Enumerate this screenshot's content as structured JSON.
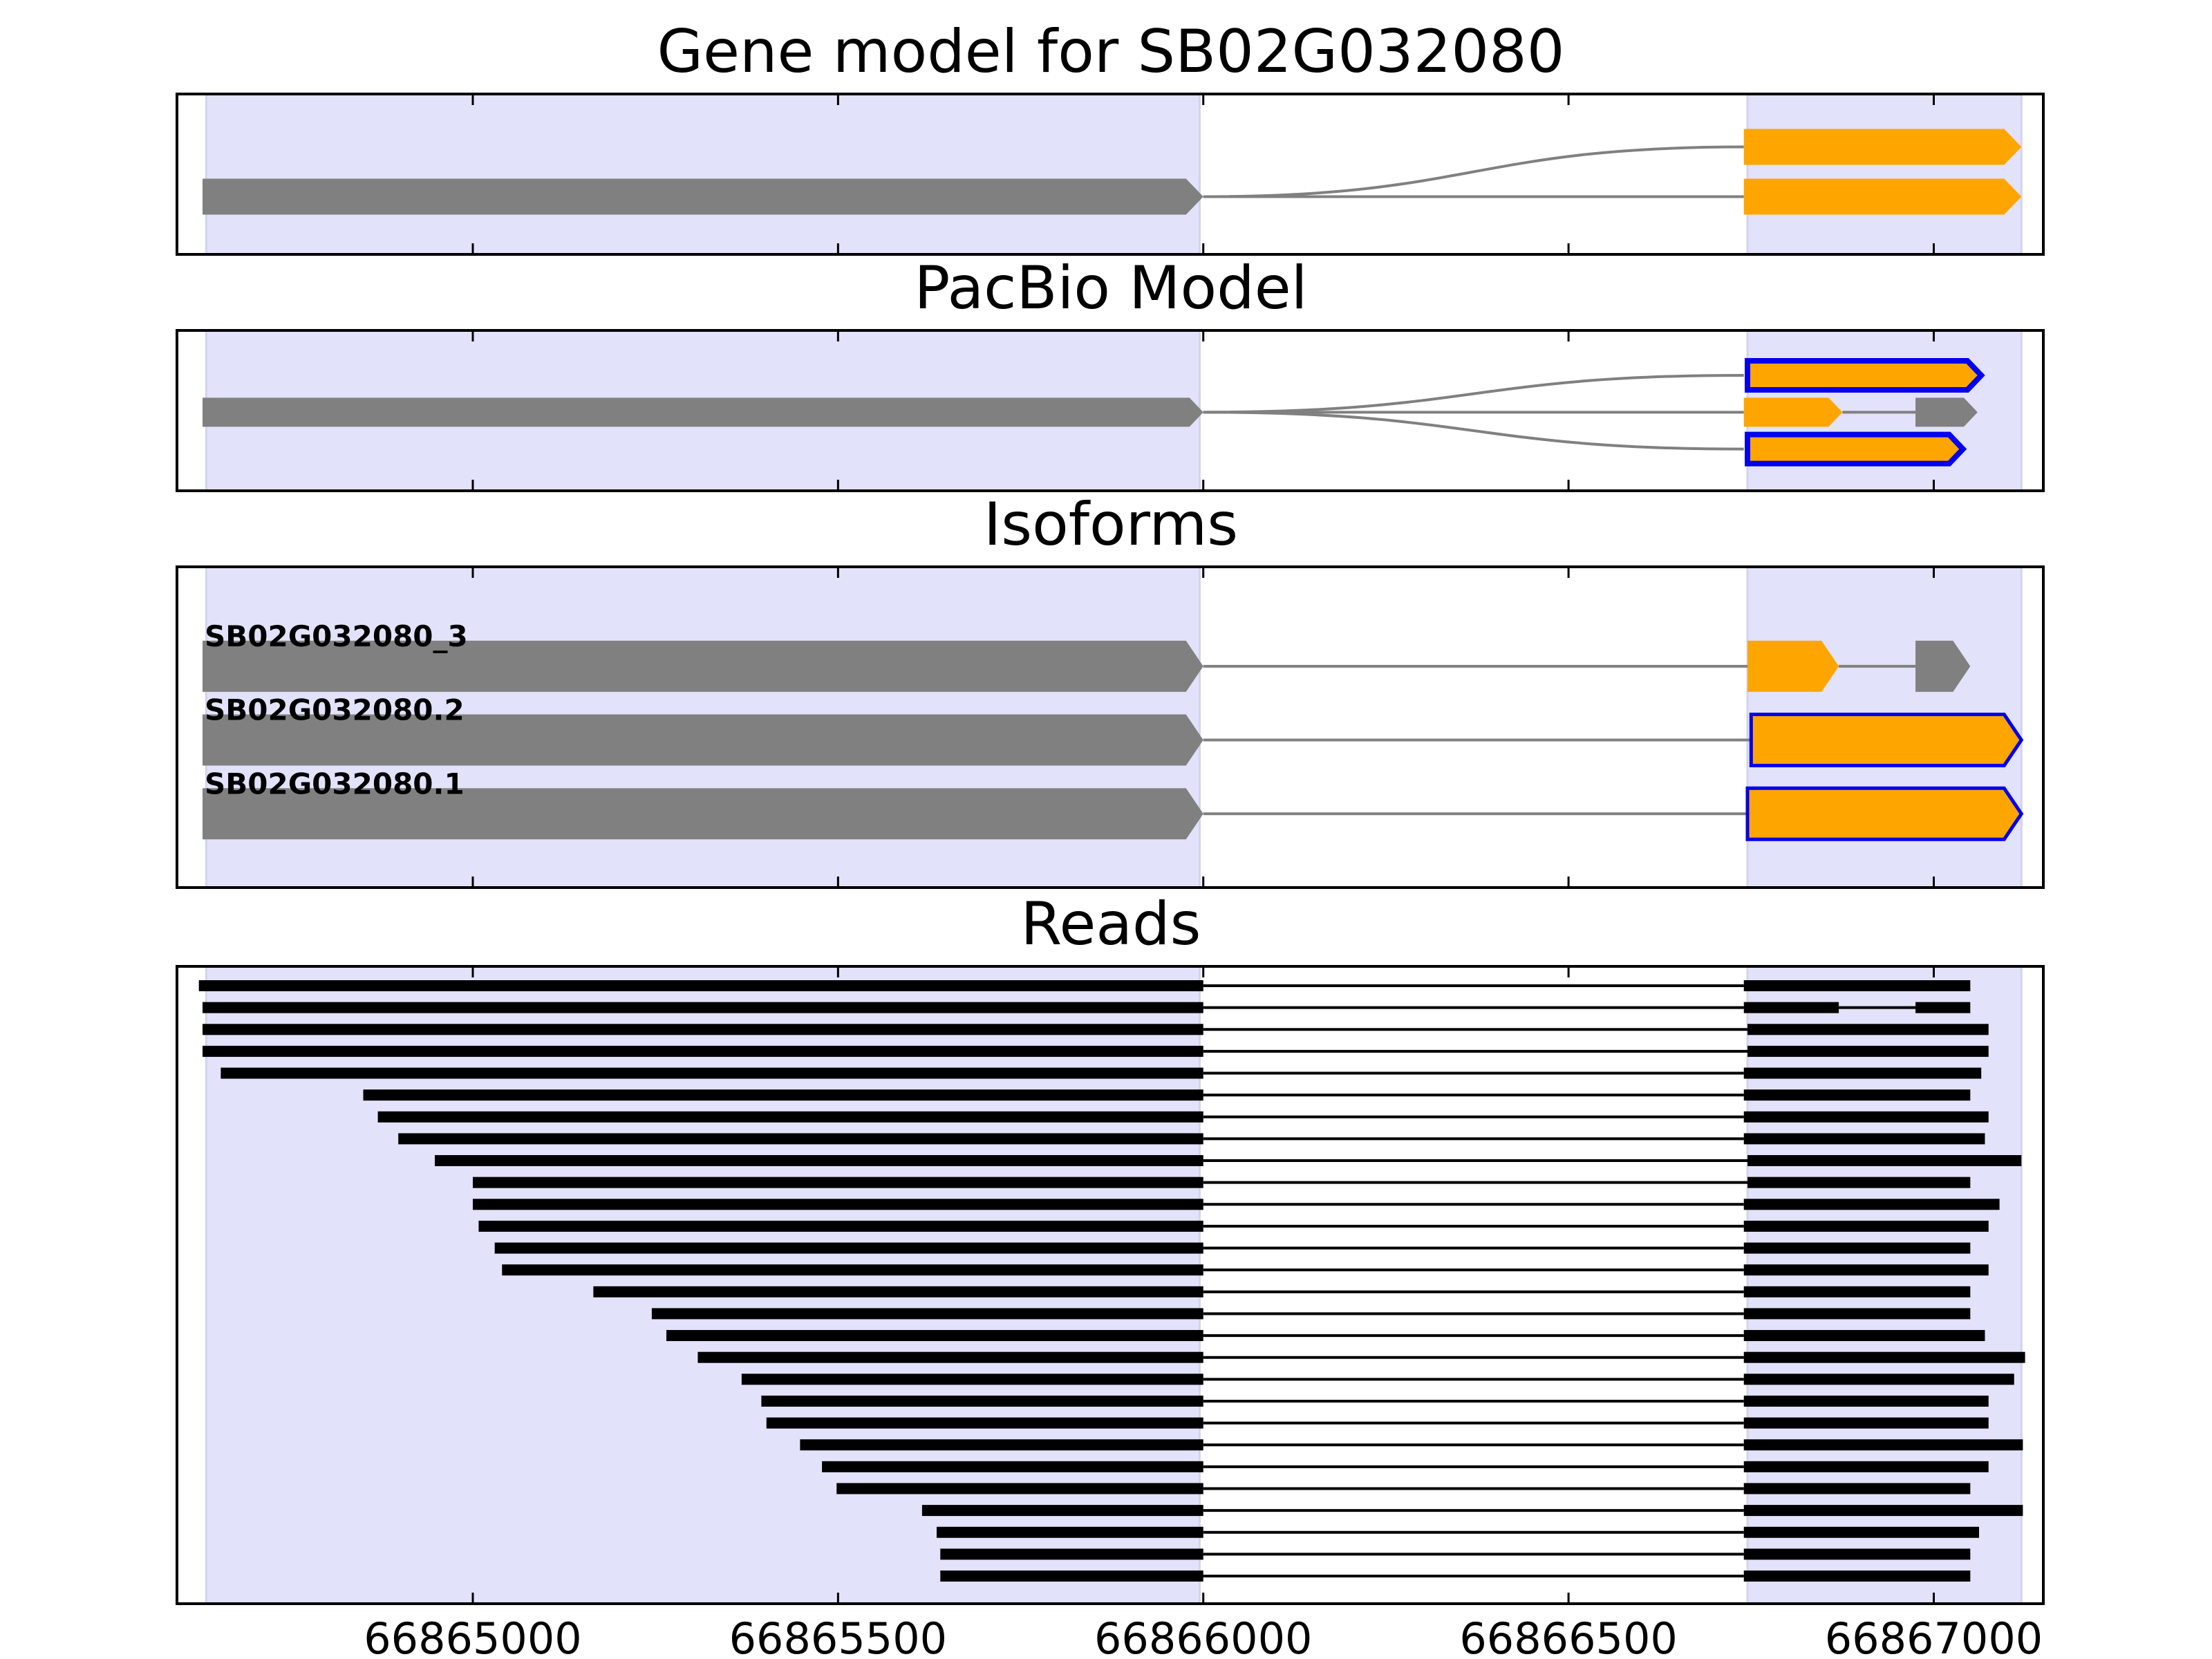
{
  "chart_data": {
    "type": "gene_model_tracks",
    "x_axis": {
      "xlim": [
        66864595,
        66867150
      ],
      "ticks": [
        66865000,
        66865500,
        66866000,
        66866500,
        66867000
      ],
      "tick_labels": [
        "66865000",
        "66865500",
        "66866000",
        "66866500",
        "66867000"
      ]
    },
    "colors": {
      "region": "#e2e2fa",
      "exon_noncoding": "#808080",
      "exon_coding": "#ffa500",
      "outline": "#0000ee",
      "intron": "#808080",
      "read": "#000000"
    },
    "highlight_regions": [
      [
        66864635,
        66865995
      ],
      [
        66866745,
        66867120
      ]
    ],
    "panels": [
      {
        "title": "Gene model for SB02G032080",
        "track_height": 1.0,
        "tracks": [
          {
            "y": 0.33,
            "arrow_w": 25,
            "exons": [
              {
                "start": 66866740,
                "end": 66867120,
                "color": "coding"
              }
            ]
          },
          {
            "y": 0.64,
            "arrow_w": 25,
            "exons": [
              {
                "start": 66864630,
                "end": 66866000,
                "color": "noncoding"
              },
              {
                "start": 66866740,
                "end": 66867120,
                "color": "coding"
              }
            ]
          }
        ],
        "curves": [
          {
            "x1": 66866000,
            "y1": 0.64,
            "x2": 66866740,
            "y2": 0.33
          }
        ]
      },
      {
        "title": "PacBio Model",
        "track_height": 0.75,
        "tracks": [
          {
            "y": 0.28,
            "arrow_w": 20,
            "exons": [
              {
                "start": 66866745,
                "end": 66867065,
                "color": "coding",
                "outline": true
              }
            ]
          },
          {
            "y": 0.51,
            "arrow_w": 20,
            "exons": [
              {
                "start": 66864630,
                "end": 66866000,
                "color": "noncoding"
              },
              {
                "start": 66866740,
                "end": 66866875,
                "color": "coding"
              },
              {
                "start": 66866975,
                "end": 66867060,
                "color": "noncoding"
              }
            ]
          },
          {
            "y": 0.74,
            "arrow_w": 20,
            "exons": [
              {
                "start": 66866745,
                "end": 66867040,
                "color": "coding",
                "outline": true
              }
            ]
          }
        ],
        "curves": [
          {
            "x1": 66866000,
            "y1": 0.51,
            "x2": 66866740,
            "y2": 0.28
          },
          {
            "x1": 66866000,
            "y1": 0.51,
            "x2": 66866740,
            "y2": 0.74
          }
        ]
      },
      {
        "title": "Isoforms",
        "track_height": 0.78,
        "tracks": [
          {
            "y": 0.31,
            "arrow_w": 25,
            "label": "SB02G032080_3",
            "exons": [
              {
                "start": 66864630,
                "end": 66866000,
                "color": "noncoding"
              },
              {
                "start": 66866745,
                "end": 66866870,
                "color": "coding"
              },
              {
                "start": 66866975,
                "end": 66867050,
                "color": "noncoding"
              }
            ]
          },
          {
            "y": 0.54,
            "arrow_w": 25,
            "label": "SB02G032080.2",
            "exons": [
              {
                "start": 66864630,
                "end": 66866000,
                "color": "noncoding"
              },
              {
                "start": 66866750,
                "end": 66867120,
                "color": "coding",
                "outline": true
              }
            ]
          },
          {
            "y": 0.77,
            "arrow_w": 25,
            "label": "SB02G032080.1",
            "exons": [
              {
                "start": 66864630,
                "end": 66866000,
                "color": "noncoding"
              },
              {
                "start": 66866745,
                "end": 66867120,
                "color": "coding",
                "outline": true
              }
            ]
          }
        ],
        "curves": []
      },
      {
        "title": "Reads",
        "rows": 28,
        "reads": [
          {
            "start": 66864625,
            "end": 66866000,
            "e2": [
              66866740,
              66867050
            ]
          },
          {
            "start": 66864630,
            "end": 66866000,
            "e2": [
              66866740,
              66866870
            ],
            "e3": [
              66866975,
              66867050
            ]
          },
          {
            "start": 66864630,
            "end": 66866000,
            "e2": [
              66866745,
              66867075
            ]
          },
          {
            "start": 66864630,
            "end": 66866000,
            "e2": [
              66866745,
              66867075
            ]
          },
          {
            "start": 66864655,
            "end": 66866000,
            "e2": [
              66866740,
              66867065
            ]
          },
          {
            "start": 66864850,
            "end": 66866000,
            "e2": [
              66866740,
              66867050
            ]
          },
          {
            "start": 66864870,
            "end": 66866000,
            "e2": [
              66866740,
              66867075
            ]
          },
          {
            "start": 66864898,
            "end": 66866000,
            "e2": [
              66866740,
              66867070
            ]
          },
          {
            "start": 66864948,
            "end": 66866000,
            "e2": [
              66866745,
              66867120
            ]
          },
          {
            "start": 66865000,
            "end": 66866000,
            "e2": [
              66866745,
              66867050
            ]
          },
          {
            "start": 66865000,
            "end": 66866000,
            "e2": [
              66866740,
              66867090
            ]
          },
          {
            "start": 66865008,
            "end": 66866000,
            "e2": [
              66866740,
              66867075
            ]
          },
          {
            "start": 66865030,
            "end": 66866000,
            "e2": [
              66866740,
              66867050
            ]
          },
          {
            "start": 66865040,
            "end": 66866000,
            "e2": [
              66866740,
              66867075
            ]
          },
          {
            "start": 66865165,
            "end": 66866000,
            "e2": [
              66866740,
              66867050
            ]
          },
          {
            "start": 66865245,
            "end": 66866000,
            "e2": [
              66866740,
              66867050
            ]
          },
          {
            "start": 66865265,
            "end": 66866000,
            "e2": [
              66866740,
              66867070
            ]
          },
          {
            "start": 66865308,
            "end": 66866000,
            "e2": [
              66866740,
              66867125
            ]
          },
          {
            "start": 66865368,
            "end": 66866000,
            "e2": [
              66866740,
              66867110
            ]
          },
          {
            "start": 66865395,
            "end": 66866000,
            "e2": [
              66866740,
              66867075
            ]
          },
          {
            "start": 66865402,
            "end": 66866000,
            "e2": [
              66866740,
              66867075
            ]
          },
          {
            "start": 66865448,
            "end": 66866000,
            "e2": [
              66866740,
              66867122
            ]
          },
          {
            "start": 66865478,
            "end": 66866000,
            "e2": [
              66866740,
              66867075
            ]
          },
          {
            "start": 66865498,
            "end": 66866000,
            "e2": [
              66866740,
              66867050
            ]
          },
          {
            "start": 66865615,
            "end": 66866000,
            "e2": [
              66866740,
              66867122
            ]
          },
          {
            "start": 66865635,
            "end": 66866000,
            "e2": [
              66866740,
              66867062
            ]
          },
          {
            "start": 66865640,
            "end": 66866000,
            "e2": [
              66866740,
              66867050
            ]
          },
          {
            "start": 66865640,
            "end": 66866000,
            "e2": [
              66866740,
              66867050
            ]
          }
        ]
      }
    ]
  }
}
